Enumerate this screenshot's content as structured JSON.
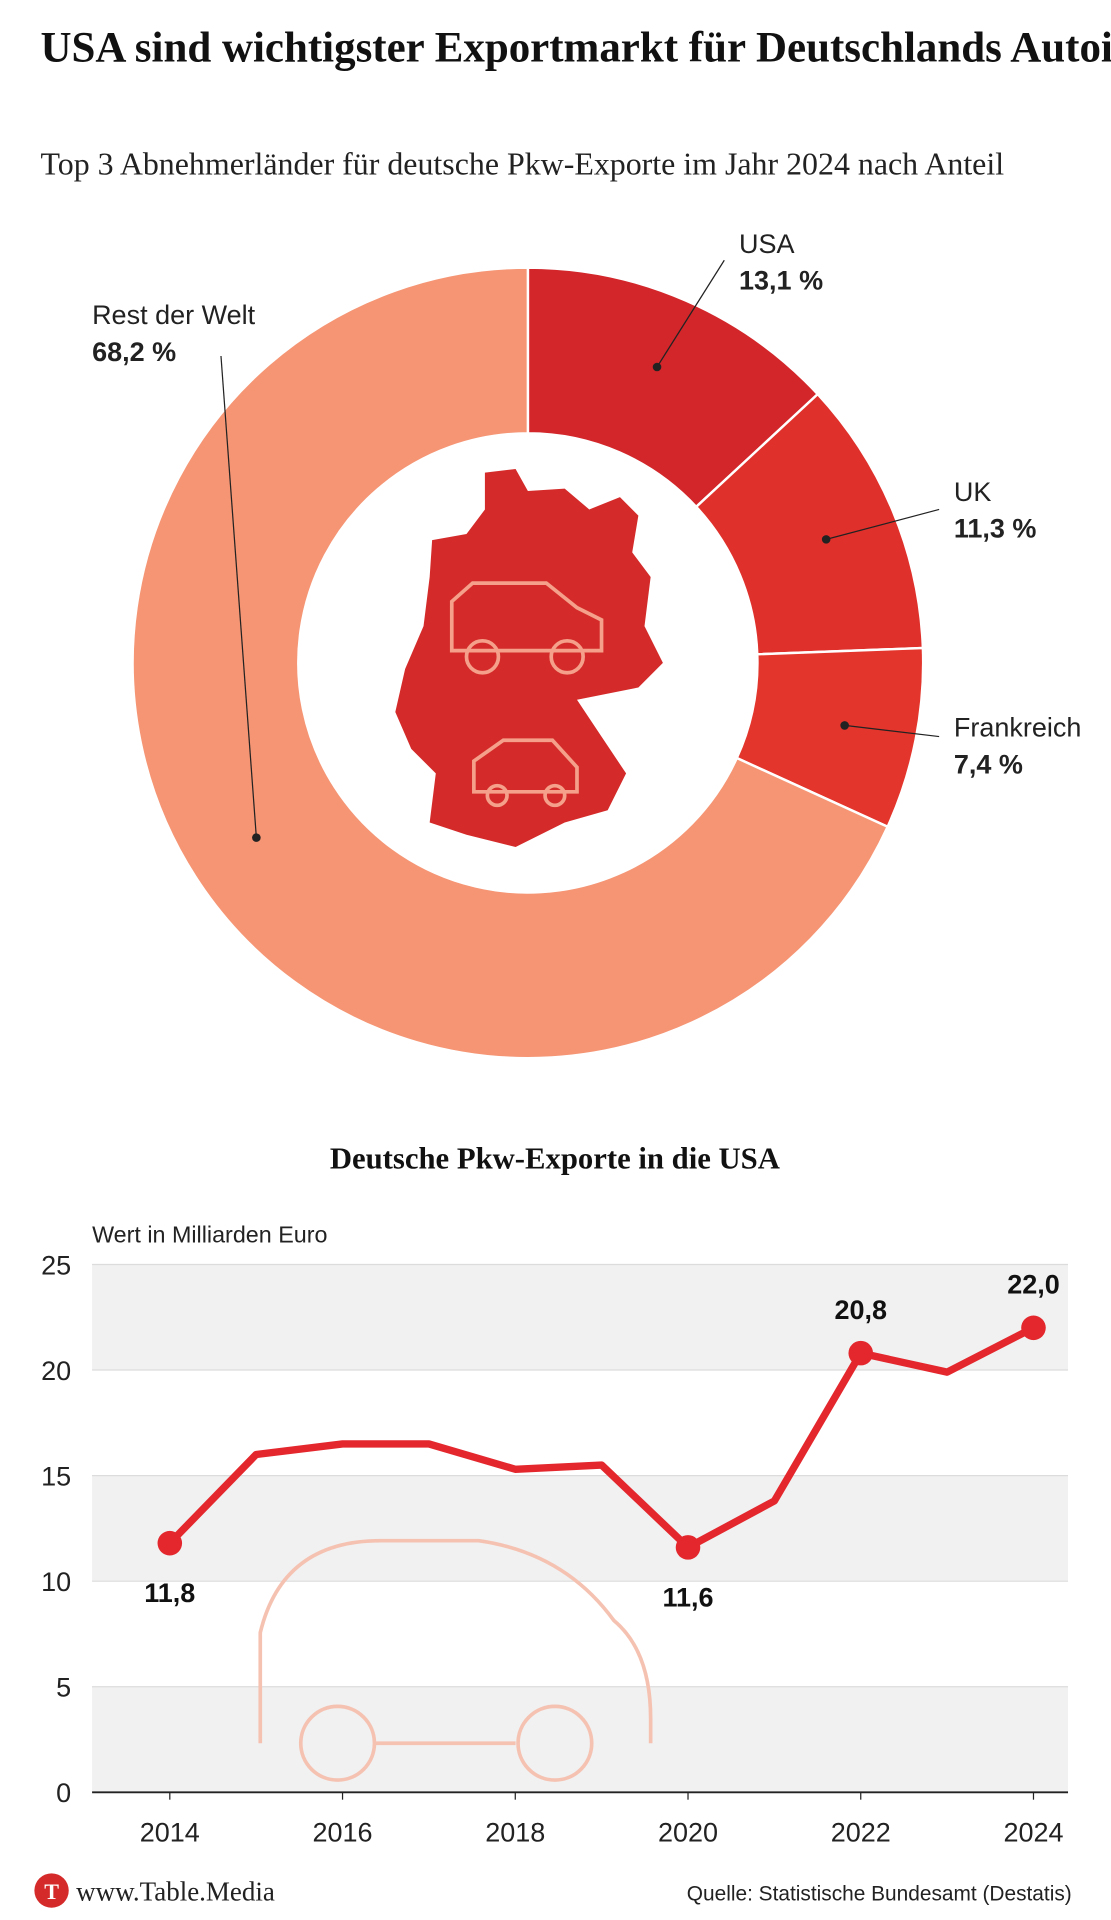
{
  "title": "USA sind wichtigster Exportmarkt für Deutschlands Autoindustrie",
  "subtitle": "Top 3 Abnehmerländer für deutsche Pkw-Exporte im Jahr 2024 nach Anteil",
  "footer": {
    "brand": "www.Table.Media",
    "source": "Quelle: Statistische Bundesamt (Destatis)"
  },
  "chart_data": [
    {
      "type": "pie",
      "donut": true,
      "categories": [
        "USA",
        "UK",
        "Frankreich",
        "Rest der Welt"
      ],
      "values": [
        13.1,
        11.3,
        7.4,
        68.2
      ],
      "value_labels": [
        "13,1 %",
        "11,3 %",
        "7,4 %",
        "68,2 %"
      ],
      "colors": [
        "#d2262a",
        "#e0302b",
        "#e3352b",
        "#f59574"
      ]
    },
    {
      "type": "line",
      "title": "Deutsche Pkw-Exporte in die USA",
      "y_label": "Wert in Milliarden Euro",
      "x": [
        2014,
        2015,
        2016,
        2017,
        2018,
        2019,
        2020,
        2021,
        2022,
        2023,
        2024
      ],
      "values": [
        11.8,
        16.0,
        16.5,
        16.5,
        15.3,
        15.5,
        11.6,
        13.8,
        20.8,
        19.9,
        22.0
      ],
      "value_labels": [
        "11,8",
        null,
        null,
        null,
        null,
        null,
        "11,6",
        null,
        "20,8",
        null,
        "22,0"
      ],
      "color": "#e3272d",
      "xlim": [
        2013.1,
        2024.4
      ],
      "xticks": [
        2014,
        2016,
        2018,
        2020,
        2022,
        2024
      ],
      "ylim": [
        0,
        25
      ],
      "yticks": [
        0,
        5,
        10,
        15,
        20,
        25
      ],
      "grid": true
    }
  ]
}
